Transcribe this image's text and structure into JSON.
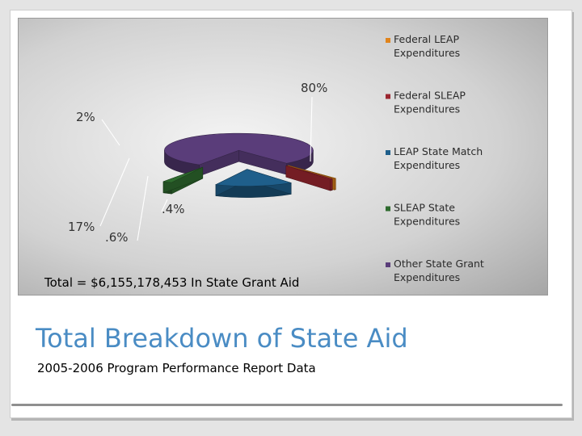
{
  "slide": {
    "title": "Total Breakdown of State Aid",
    "subtitle": "2005-2006 Program Performance Report Data",
    "total_text": "Total = $6,155,178,453 In State Grant Aid"
  },
  "chart_data": {
    "type": "pie",
    "three_d": true,
    "legend_position": "right",
    "categories": [
      "Federal LEAP Expenditures",
      "Federal SLEAP Expenditures",
      "LEAP State Match Expenditures",
      "SLEAP State Expenditures",
      "Other State Grant Expenditures"
    ],
    "values": [
      0.4,
      0.6,
      17,
      2,
      80
    ],
    "data_labels": [
      ".4%",
      ".6%",
      "17%",
      "2%",
      "80%"
    ],
    "colors": [
      "#e0841c",
      "#9b2630",
      "#1f5f8b",
      "#2e6b2e",
      "#5a3d7a"
    ],
    "exploded": [
      true,
      true,
      true,
      true,
      false
    ]
  }
}
